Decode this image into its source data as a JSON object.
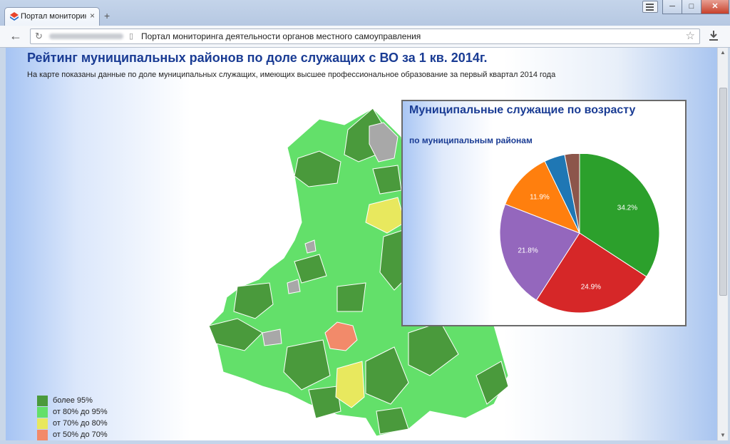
{
  "browser": {
    "tab_title": "Портал мониторинга",
    "tab_close": "×",
    "new_tab": "+",
    "back": "←",
    "reload": "↻",
    "page_title": "Портал мониторинга деятельности органов местного самоуправления",
    "star": "☆",
    "window_controls": {
      "minimize": "─",
      "maximize": "□",
      "close": "✕"
    }
  },
  "page": {
    "header": "Рейтинг муниципальных районов по доле служащих с ВО за 1 кв. 2014г.",
    "subtitle": "На карте показаны данные по доле муниципальных служащих, имеющих высшее профессиональное образование за первый квартал 2014 года"
  },
  "legend": [
    {
      "label": "более 95%",
      "color": "#4a9a3c"
    },
    {
      "label": "от 80% до 95%",
      "color": "#63e06a"
    },
    {
      "label": "от 70% до 80%",
      "color": "#e8e85e"
    },
    {
      "label": "от 50% до 70%",
      "color": "#f28a6a"
    }
  ],
  "colors": {
    "dark_green": "#4a9a3c",
    "light_green": "#63e06a",
    "yellow": "#e8e85e",
    "salmon": "#f28a6a",
    "gray": "#a8a8a8",
    "title_blue": "#1a3c94"
  },
  "popup": {
    "title": "Муниципальные служащие по возрасту",
    "subtitle": "по муниципальным районам"
  },
  "chart_data": {
    "type": "pie",
    "slices": [
      {
        "value": 34.2,
        "label": "34.2%",
        "color": "#2ca02c"
      },
      {
        "value": 24.9,
        "label": "24.9%",
        "color": "#d62728"
      },
      {
        "value": 21.8,
        "label": "21.8%",
        "color": "#9467bd"
      },
      {
        "value": 11.9,
        "label": "11.9%",
        "color": "#ff7f0e"
      },
      {
        "value": 4.2,
        "label": "",
        "color": "#1f77b4"
      },
      {
        "value": 3.0,
        "label": "",
        "color": "#8c564b"
      }
    ]
  }
}
